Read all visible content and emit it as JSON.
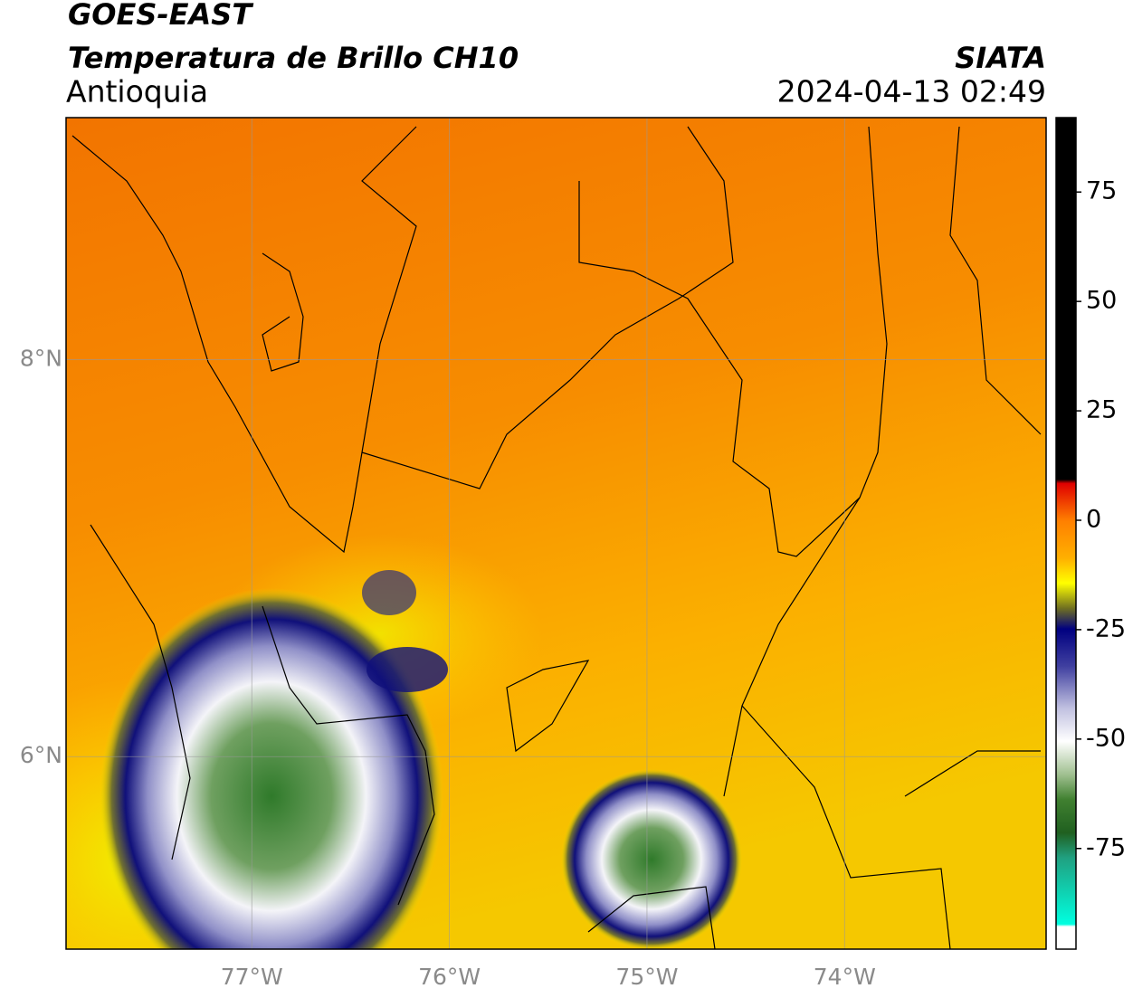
{
  "header": {
    "title": "GOES-EAST",
    "subtitle": "Temperatura de Brillo CH10",
    "region": "Antioquia",
    "source": "SIATA",
    "datetime": "2024-04-13 02:49"
  },
  "map": {
    "xlim": [
      -77.94,
      -72.98
    ],
    "ylim": [
      5.03,
      9.22
    ],
    "xticks": [
      {
        "value": -77,
        "label": "77°W"
      },
      {
        "value": -76,
        "label": "76°W"
      },
      {
        "value": -75,
        "label": "75°W"
      },
      {
        "value": -74,
        "label": "74°W"
      }
    ],
    "yticks": [
      {
        "value": 6,
        "label": "6°N"
      },
      {
        "value": 8,
        "label": "8°N"
      }
    ]
  },
  "colorbar": {
    "lim": [
      -98,
      92
    ],
    "ticks": [
      -75,
      -50,
      -25,
      0,
      25,
      50,
      75
    ]
  }
}
